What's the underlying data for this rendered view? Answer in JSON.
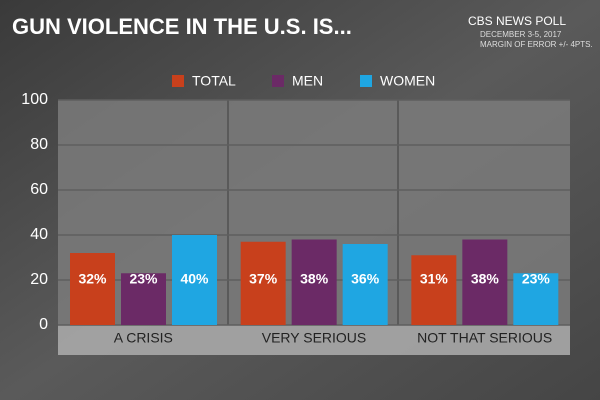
{
  "chart_data": {
    "type": "bar",
    "title": "GUN VIOLENCE IN THE U.S. IS...",
    "source": "CBS NEWS POLL",
    "annotations": [
      "DECEMBER 3-5, 2017",
      "MARGIN OF ERROR +/- 4PTS."
    ],
    "categories": [
      "A CRISIS",
      "VERY SERIOUS",
      "NOT THAT SERIOUS"
    ],
    "series": [
      {
        "name": "TOTAL",
        "color": "#c8401c",
        "values": [
          32,
          37,
          31
        ],
        "value_labels": [
          "32%",
          "37%",
          "31%"
        ]
      },
      {
        "name": "MEN",
        "color": "#6b2a66",
        "values": [
          23,
          38,
          38
        ],
        "value_labels": [
          "23%",
          "38%",
          "38%"
        ]
      },
      {
        "name": "WOMEN",
        "color": "#1fa6e2",
        "values": [
          40,
          36,
          23
        ],
        "value_labels": [
          "40%",
          "36%",
          "23%"
        ]
      }
    ],
    "ylim": [
      0,
      100
    ],
    "yticks": [
      0,
      20,
      40,
      60,
      80,
      100
    ],
    "grid": true
  }
}
